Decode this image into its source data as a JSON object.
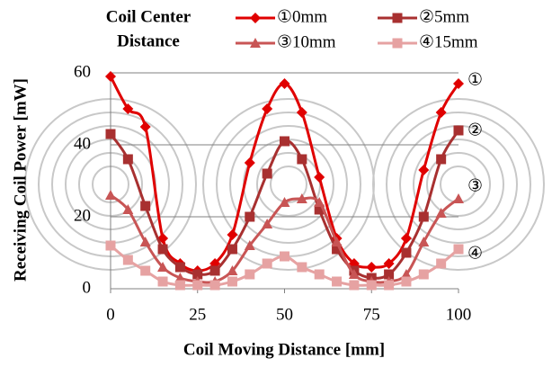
{
  "chart_data": {
    "type": "line",
    "legend_title": [
      "Coil Center",
      "Distance"
    ],
    "x_label": "Coil Moving Distance [mm]",
    "y_label": "Receiving Coil Power [mW]",
    "x": [
      0,
      5,
      10,
      15,
      20,
      25,
      30,
      35,
      40,
      45,
      50,
      55,
      60,
      65,
      70,
      75,
      80,
      85,
      90,
      95,
      100
    ],
    "xlim": [
      0,
      100
    ],
    "xticks": [
      0,
      25,
      50,
      75,
      100
    ],
    "ylim": [
      0,
      60
    ],
    "yticks": [
      0,
      20,
      40,
      60
    ],
    "grid": true,
    "series": [
      {
        "name": "①0mm",
        "color": "#e00000",
        "marker": "diamond",
        "values": [
          59,
          50,
          45,
          14,
          7,
          5,
          7,
          15,
          35,
          50,
          57,
          49,
          31,
          14,
          7,
          6,
          7,
          14,
          33,
          49,
          57
        ]
      },
      {
        "name": "②5mm",
        "color": "#a83030",
        "marker": "square",
        "values": [
          43,
          36,
          23,
          11,
          6,
          4,
          5,
          11,
          20,
          32,
          41,
          36,
          22,
          11,
          5,
          3,
          4,
          10,
          20,
          36,
          44
        ]
      },
      {
        "name": "③10mm",
        "color": "#c85555",
        "marker": "triangle",
        "values": [
          26,
          22,
          13,
          6,
          3,
          2,
          2,
          5,
          12,
          18,
          24,
          25,
          24,
          13,
          4,
          2,
          2,
          4,
          13,
          21,
          25
        ]
      },
      {
        "name": "④15mm",
        "color": "#e6a2a2",
        "marker": "square",
        "values": [
          12,
          8,
          5,
          2,
          1,
          1,
          1,
          2,
          4,
          7,
          9,
          6,
          4,
          2,
          1,
          1,
          1,
          2,
          4,
          7,
          11
        ]
      }
    ],
    "annotations": [
      "①",
      "②",
      "③",
      "④"
    ]
  }
}
